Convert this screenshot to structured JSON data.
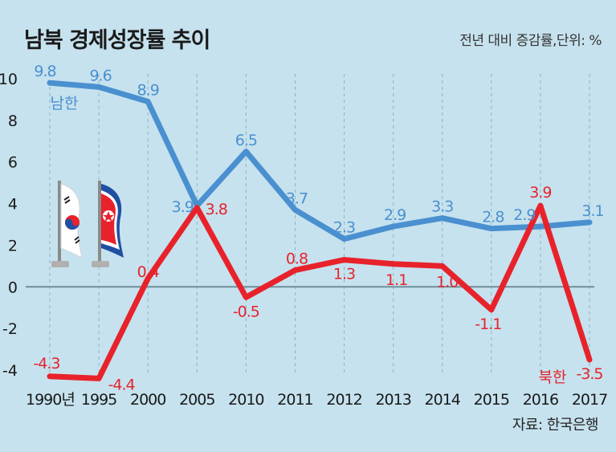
{
  "title": "남북 경제성장률 추이",
  "unit_note": "전년 대비 증감률,단위: %",
  "source": "자료: 한국은행",
  "flag_icons": [
    "south-korea-flag-icon",
    "north-korea-flag-icon"
  ],
  "colors": {
    "background": "#c6e2ee",
    "south": "#4a90d0",
    "north": "#e8222b",
    "zero_line": "#6f8f99",
    "grid": "#8fb2c0"
  },
  "chart_data": {
    "type": "line",
    "categories": [
      "1990년",
      "1995",
      "2000",
      "2005",
      "2010",
      "2011",
      "2012",
      "2013",
      "2014",
      "2015",
      "2016",
      "2017"
    ],
    "ylim": [
      -4,
      10
    ],
    "yticks": [
      -4,
      -2,
      0,
      2,
      4,
      6,
      8,
      10
    ],
    "grid": "vertical dashed",
    "series": [
      {
        "name": "남한",
        "color": "#4a90d0",
        "values": [
          9.8,
          9.6,
          8.9,
          3.9,
          6.5,
          3.7,
          2.3,
          2.9,
          3.3,
          2.8,
          2.9,
          3.1
        ],
        "labels": [
          "9.8",
          "9.6",
          "8.9",
          "3.9",
          "6.5",
          "3.7",
          "2.3",
          "2.9",
          "3.3",
          "2.8",
          "2.9",
          "3.1"
        ]
      },
      {
        "name": "북한",
        "color": "#e8222b",
        "values": [
          -4.3,
          -4.4,
          0.4,
          3.8,
          -0.5,
          0.8,
          1.3,
          1.1,
          1.0,
          -1.1,
          3.9,
          -3.5
        ],
        "labels": [
          "-4.3",
          "-4.4",
          "0.4",
          "3.8",
          "-0.5",
          "0.8",
          "1.3",
          "1.1",
          "1.0",
          "-1.1",
          "3.9",
          "-3.5"
        ]
      }
    ]
  }
}
